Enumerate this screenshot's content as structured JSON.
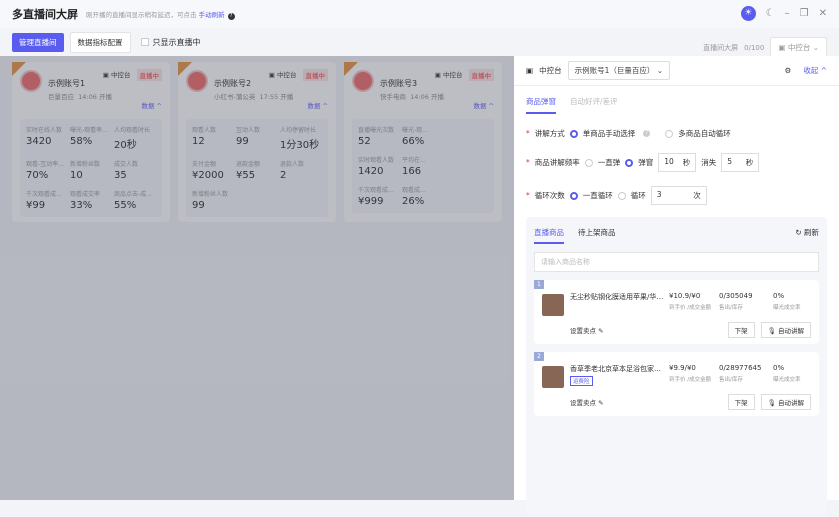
{
  "header": {
    "title": "多直播间大屏",
    "hint": "刚开播的直播间显示稍有延迟，可点击",
    "hint_link": "手动刷新",
    "theme_light": "☀",
    "theme_dark": "☾",
    "minimize": "–",
    "maximize": "❐",
    "close": "✕"
  },
  "toolbar": {
    "manage": "管理直播间",
    "metrics_config": "数据指标配置",
    "only_live": "只显示直播中",
    "screen_label": "直播间大屏",
    "screen_count": "0/100",
    "console": "中控台"
  },
  "cards": [
    {
      "name": "示例账号1",
      "platform": "巨量百应",
      "time": "14:06 开播",
      "console": "中控台",
      "status": "直播中",
      "more": "数据",
      "metrics": [
        [
          "实时在线人数",
          "3420"
        ],
        [
          "曝光-观看率...",
          "58%"
        ],
        [
          "人均观看时长",
          "20秒"
        ],
        [
          "观看-互动率...",
          "70%"
        ],
        [
          "新增粉丝数",
          "10"
        ],
        [
          "成交人数",
          "35"
        ],
        [
          "千次观看成...",
          "¥99"
        ],
        [
          "观看成交率",
          "33%"
        ],
        [
          "商品点击-成...",
          "55%"
        ]
      ]
    },
    {
      "name": "示例账号2",
      "platform": "小红书-蒲公英",
      "time": "17:55 开播",
      "console": "中控台",
      "status": "直播中",
      "more": "数据",
      "metrics": [
        [
          "观看人数",
          "12"
        ],
        [
          "互动人数",
          "99"
        ],
        [
          "人均停留时长",
          "1分30秒"
        ],
        [
          "支付金额",
          "¥2000"
        ],
        [
          "退款金额",
          "¥55"
        ],
        [
          "退款人数",
          "2"
        ],
        [
          "新增粉丝人数",
          "99"
        ]
      ]
    },
    {
      "name": "示例账号3",
      "platform": "快手电商",
      "time": "14:06 开播",
      "console": "中控台",
      "status": "直播中",
      "more": "数据",
      "metrics": [
        [
          "直播曝光次数",
          "52"
        ],
        [
          "曝光-观...",
          "66%"
        ],
        [
          "",
          ""
        ],
        [
          "实时观看人数",
          "1420"
        ],
        [
          "平均在...",
          "166"
        ],
        [
          "",
          ""
        ],
        [
          "千次观看成...",
          "¥999"
        ],
        [
          "观看成...",
          "26%"
        ],
        [
          "",
          ""
        ]
      ]
    }
  ],
  "panel": {
    "console": "中控台",
    "account": "示例账号1（巨量百应）",
    "collapse": "收起 ^",
    "tabs": [
      "商品弹窗",
      "自动好评/差评"
    ],
    "mode_label": "讲解方式",
    "mode_opts": [
      "单商品手动选择",
      "多商品自动循环"
    ],
    "freq_label": "商品讲解频率",
    "freq_opts": [
      "一直弹",
      "弹窗"
    ],
    "show_sec": "10",
    "unit": "秒",
    "hide_label": "消失",
    "hide_sec": "5",
    "loop_label": "循环次数",
    "loop_opts": [
      "一直循环",
      "循环"
    ],
    "loop_count": "3",
    "loop_unit": "次",
    "list_tabs": [
      "直播商品",
      "待上架商品"
    ],
    "refresh": "刷新",
    "search_placeholder": "请输入商品名称",
    "items": [
      {
        "no": "1",
        "name": "无尘秒贴钢化膜适用苹果/华为/荣耀/...",
        "price": "¥10.9/¥0",
        "price_label": "到手价 /成交金额",
        "stock": "0/305049",
        "stock_label": "售出/库存",
        "rate": "0%",
        "rate_label": "曝光成交率",
        "sell_point": "设置卖点",
        "off": "下架",
        "auto": "自动讲解"
      },
      {
        "no": "2",
        "name": "香草季老北京草本足浴包家用...",
        "badge": "运费险",
        "price": "¥9.9/¥0",
        "price_label": "到手价 /成交金额",
        "stock": "0/28977645",
        "stock_label": "售出/库存",
        "rate": "0%",
        "rate_label": "曝光成交率",
        "sell_point": "设置卖点",
        "off": "下架",
        "auto": "自动讲解"
      }
    ]
  }
}
